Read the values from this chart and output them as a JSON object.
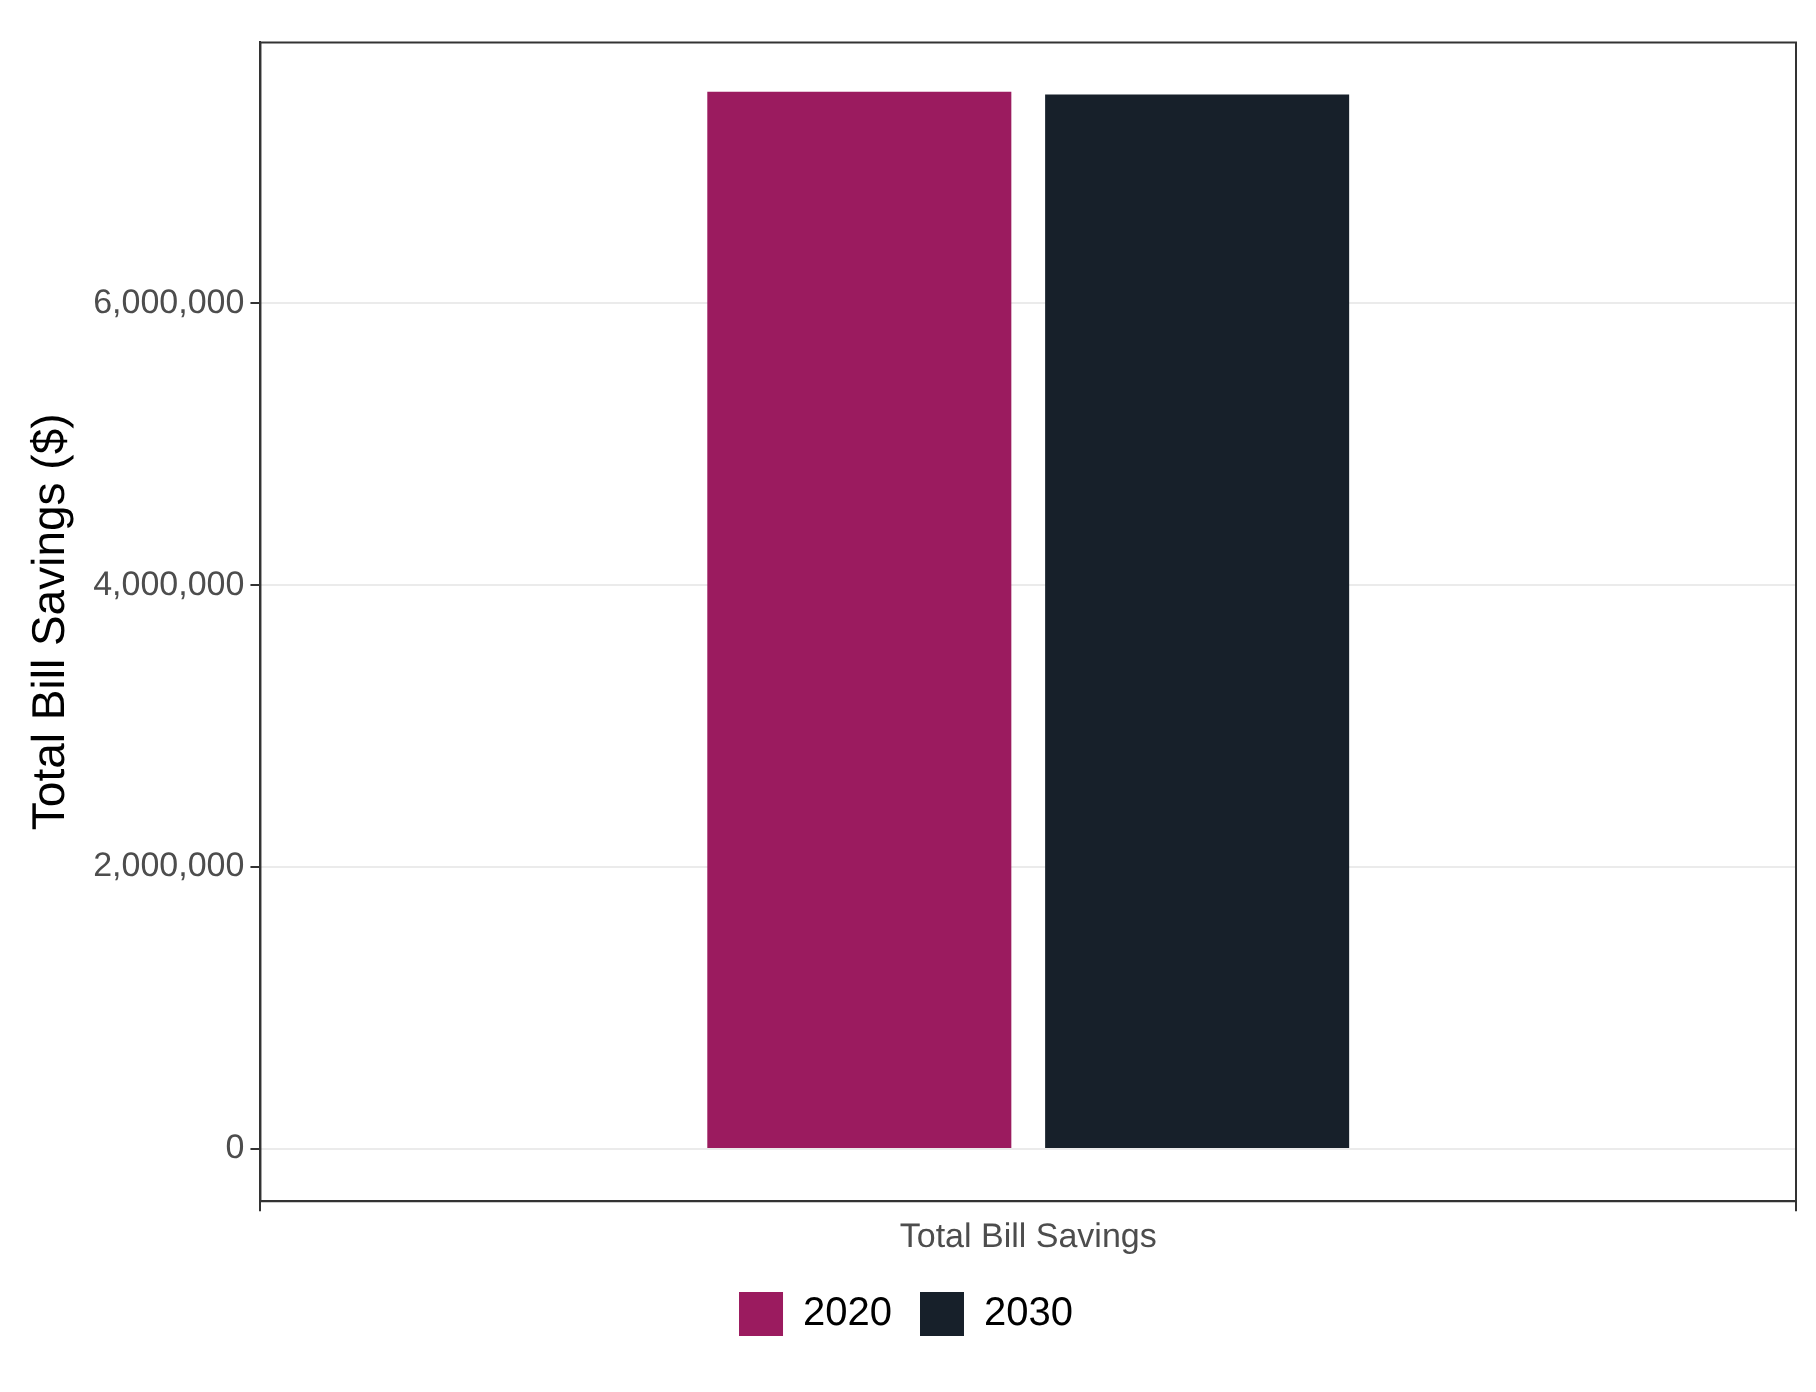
{
  "chart_data": {
    "type": "bar",
    "ylabel": "Total Bill Savings ($)",
    "categories": [
      "Total Bill Savings"
    ],
    "series": [
      {
        "name": "2020",
        "color": "#9b1b5f",
        "values": [
          7500000
        ]
      },
      {
        "name": "2030",
        "color": "#17202a",
        "values": [
          7480000
        ]
      }
    ],
    "ylim": [
      -370000,
      7850000
    ],
    "yticks": [
      {
        "value": 0,
        "label": "0"
      },
      {
        "value": 2000000,
        "label": "2,000,000"
      },
      {
        "value": 4000000,
        "label": "4,000,000"
      },
      {
        "value": 6000000,
        "label": "6,000,000"
      }
    ],
    "grid": true,
    "legend": "bottom"
  }
}
